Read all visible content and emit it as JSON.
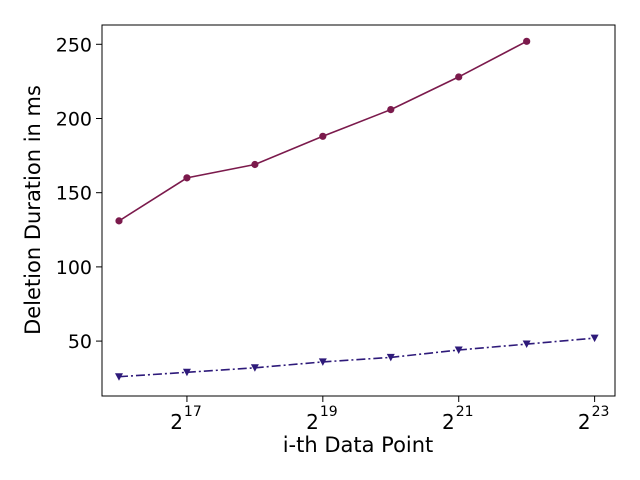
{
  "chart_data": {
    "type": "line",
    "xlabel": "i-th Data Point",
    "ylabel": "Deletion Duration in ms",
    "x_scale": "log2",
    "xlim_exp": [
      15.75,
      23.3
    ],
    "ylim": [
      13,
      263
    ],
    "x_ticks": [
      {
        "exp": 17,
        "base": "2",
        "sup": "17"
      },
      {
        "exp": 19,
        "base": "2",
        "sup": "19"
      },
      {
        "exp": 21,
        "base": "2",
        "sup": "21"
      },
      {
        "exp": 23,
        "base": "2",
        "sup": "23"
      }
    ],
    "y_ticks": [
      {
        "value": 50,
        "label": "50"
      },
      {
        "value": 100,
        "label": "100"
      },
      {
        "value": 150,
        "label": "150"
      },
      {
        "value": 200,
        "label": "200"
      },
      {
        "value": 250,
        "label": "250"
      }
    ],
    "grid": false,
    "series": [
      {
        "color": "#7b1a4c",
        "marker": "circle",
        "linestyle": "solid",
        "x_exp": [
          16,
          17,
          18,
          19,
          20,
          21,
          22
        ],
        "values": [
          131,
          160,
          169,
          188,
          206,
          228,
          252
        ]
      },
      {
        "color": "#2e1a7a",
        "marker": "triangle-down",
        "linestyle": "dashdot",
        "x_exp": [
          16,
          17,
          18,
          19,
          20,
          21,
          22,
          23
        ],
        "values": [
          26,
          29,
          32,
          36,
          39,
          44,
          48,
          52
        ]
      }
    ]
  }
}
